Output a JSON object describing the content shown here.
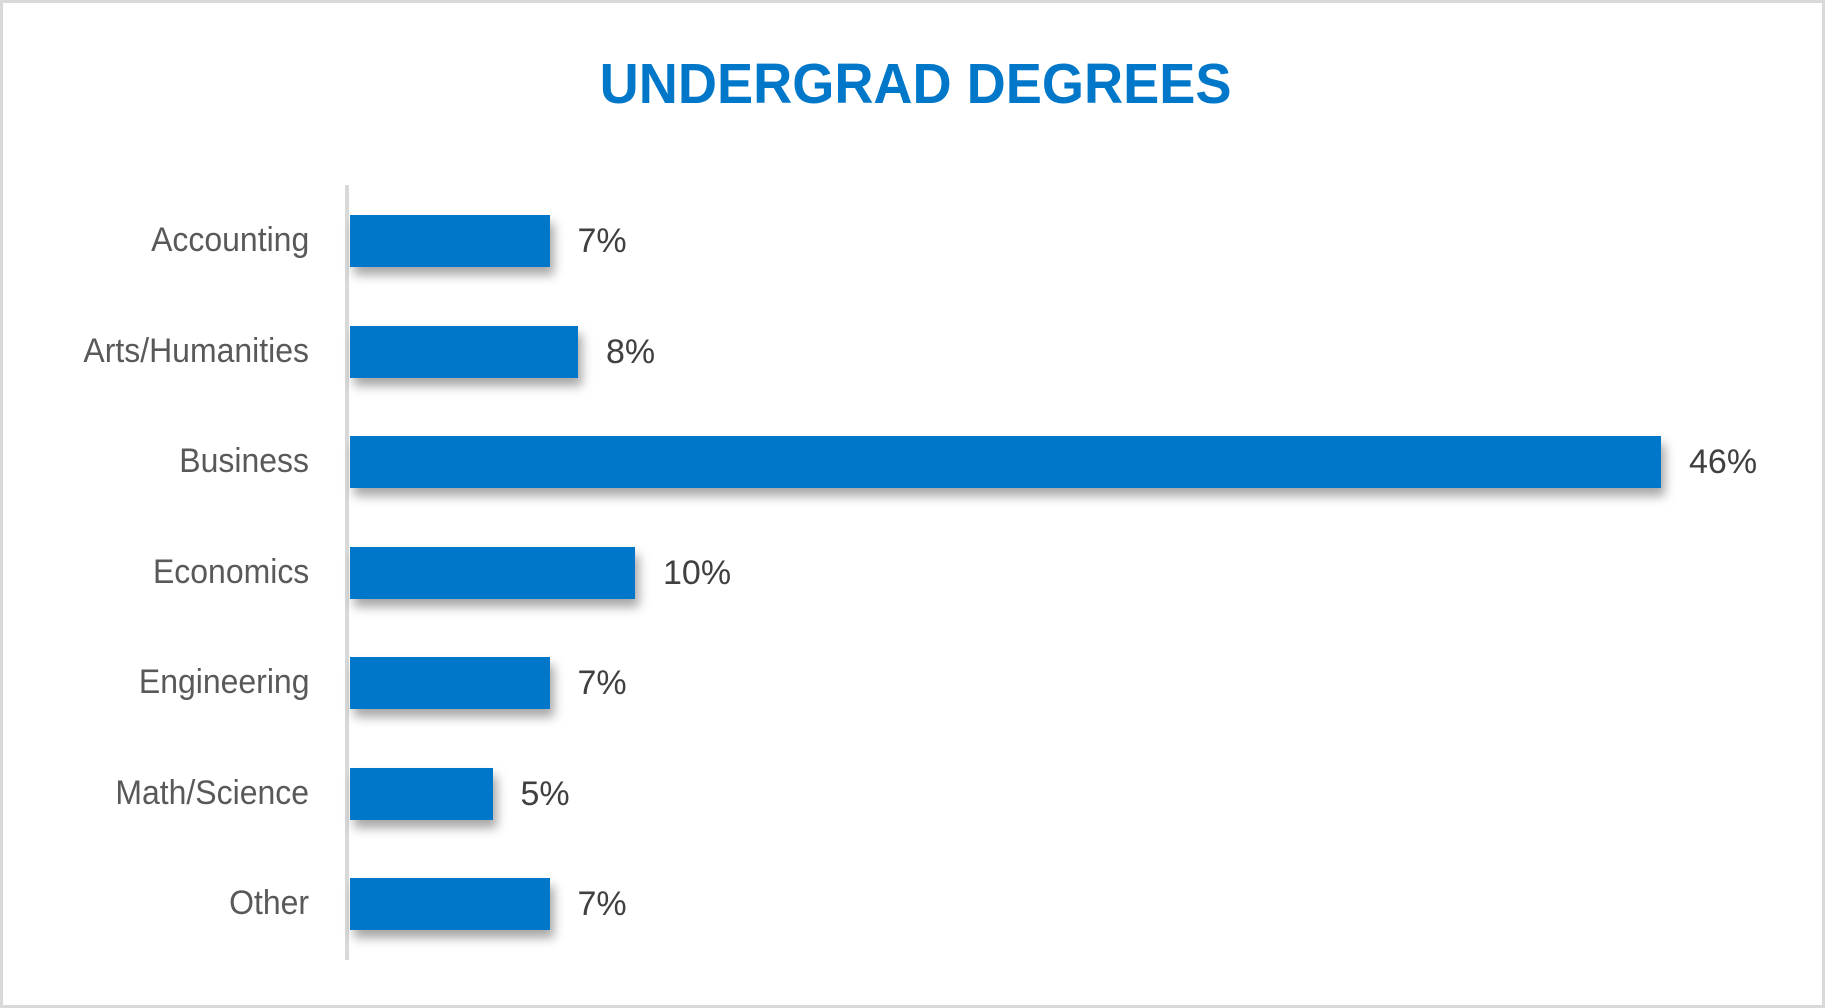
{
  "chart_data": {
    "type": "bar",
    "orientation": "horizontal",
    "title": "UNDERGRAD DEGREES",
    "xlabel": "",
    "ylabel": "",
    "categories": [
      "Accounting",
      "Arts/Humanities",
      "Business",
      "Economics",
      "Engineering",
      "Math/Science",
      "Other"
    ],
    "values": [
      7,
      8,
      46,
      10,
      7,
      5,
      7
    ],
    "value_labels": [
      "7%",
      "8%",
      "46%",
      "10%",
      "7%",
      "5%",
      "7%"
    ],
    "unit": "%",
    "grid": false,
    "legend": null,
    "xlim": [
      0,
      50
    ],
    "bar_color": "#0077c8",
    "title_color": "#0077c8"
  },
  "title": "UNDERGRAD DEGREES",
  "rows": [
    {
      "label": "Accounting",
      "value": 7,
      "value_label": "7%"
    },
    {
      "label": "Arts/Humanities",
      "value": 8,
      "value_label": "8%"
    },
    {
      "label": "Business",
      "value": 46,
      "value_label": "46%"
    },
    {
      "label": "Economics",
      "value": 10,
      "value_label": "10%"
    },
    {
      "label": "Engineering",
      "value": 7,
      "value_label": "7%"
    },
    {
      "label": "Math/Science",
      "value": 5,
      "value_label": "5%"
    },
    {
      "label": "Other",
      "value": 7,
      "value_label": "7%"
    }
  ]
}
